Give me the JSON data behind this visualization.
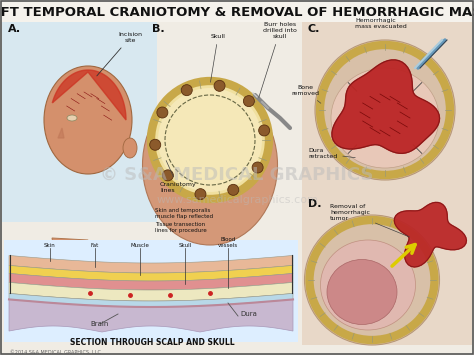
{
  "title": "LEFT TEMPORAL CRANIOTOMY & REMOVAL OF HEMORRHAGIC MASS",
  "title_fontsize": 9.5,
  "title_fontweight": "bold",
  "background_color": "#e8e0d0",
  "border_color": "#000000",
  "watermark1": "© S&A MEDICAL GRAPHICS",
  "watermark2": "www.samedicalgraphics.com",
  "copyright": "©2014 S&A MEDICAL GRAPHICS, LLC",
  "section_label": "SECTION THROUGH SCALP AND SKULL",
  "skin_color": "#e8b898",
  "fat_color": "#f0d060",
  "muscle_color": "#e09090",
  "skull_color": "#f0e8c0",
  "brain_color": "#c8b8c8",
  "craniotomy_flap_color": "#f0d8a0",
  "tumor_color": "#aa2020",
  "face_skin_color": "#d4906c",
  "bone_ring_color": "#c8a848",
  "dura_color": "#d4aab8",
  "bg_light": "#f0ece4",
  "scalp_pink": "#d49080"
}
